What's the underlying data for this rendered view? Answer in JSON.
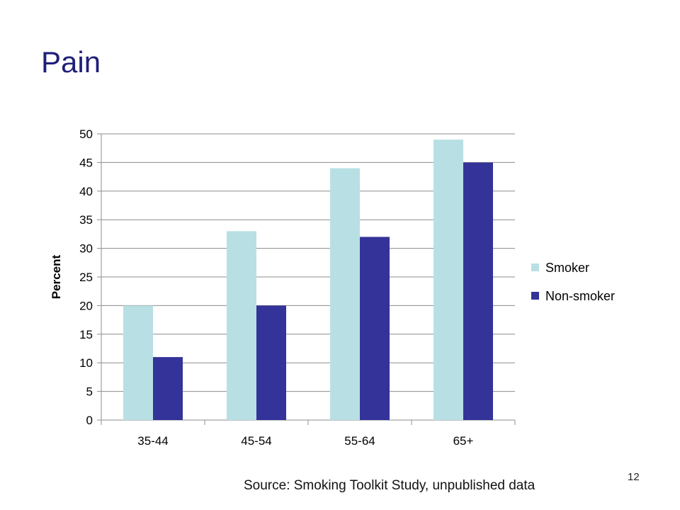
{
  "slide": {
    "title": "Pain",
    "source": "Source: Smoking Toolkit Study, unpublished data",
    "page_number": "12"
  },
  "colors": {
    "smoker": "#b8e0e4",
    "non_smoker": "#333399",
    "grid": "#8c8c8c",
    "title": "#1f1f7a"
  },
  "chart_data": {
    "type": "bar",
    "categories": [
      "35-44",
      "45-54",
      "55-64",
      "65+"
    ],
    "series": [
      {
        "name": "Smoker",
        "values": [
          20,
          33,
          44,
          49
        ]
      },
      {
        "name": "Non-smoker",
        "values": [
          11,
          20,
          32,
          45
        ]
      }
    ],
    "ylabel": "Percent",
    "ylim": [
      0,
      50
    ],
    "yticks": [
      0,
      5,
      10,
      15,
      20,
      25,
      30,
      35,
      40,
      45,
      50
    ],
    "grid": true,
    "legend": "right"
  }
}
